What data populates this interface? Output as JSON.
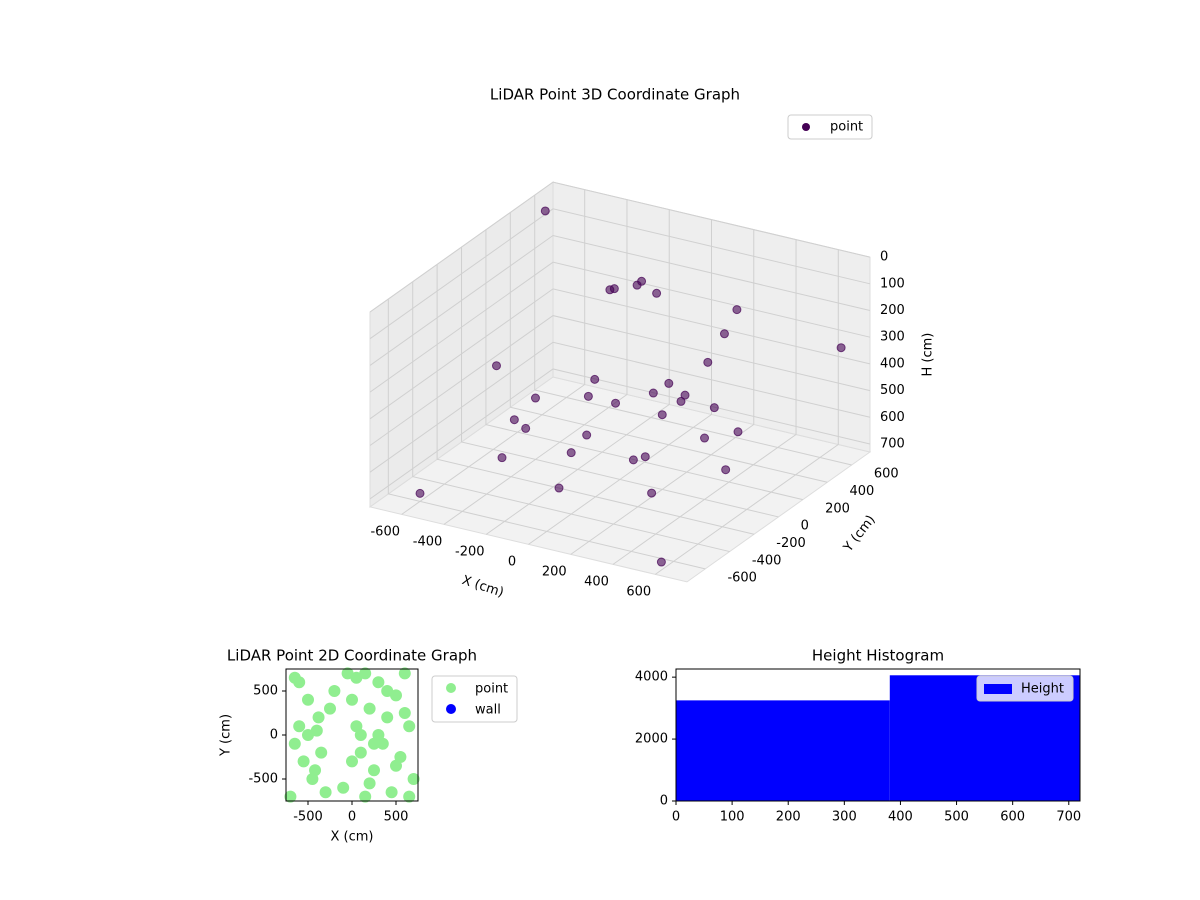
{
  "chart_data": [
    {
      "type": "scatter3d",
      "title": "LiDAR Point 3D Coordinate Graph",
      "xlabel": "X (cm)",
      "ylabel": "Y (cm)",
      "zlabel": "H (cm)",
      "xlim": [
        -750,
        750
      ],
      "ylim": [
        -750,
        750
      ],
      "zlim": [
        730,
        0
      ],
      "xticks": [
        -600,
        -400,
        -200,
        0,
        200,
        400,
        600
      ],
      "yticks": [
        -600,
        -400,
        -200,
        0,
        200,
        400,
        600
      ],
      "zticks": [
        0,
        100,
        200,
        300,
        400,
        500,
        600,
        700
      ],
      "grid": true,
      "legend": "upper right",
      "series": [
        {
          "name": "point",
          "color": "#440154",
          "x": [
            400,
            283,
            0,
            -283,
            -400,
            -283,
            0,
            283,
            500,
            354,
            0,
            -354,
            -500,
            -354,
            0,
            354,
            -200,
            -100,
            0,
            -150,
            -250,
            300,
            350,
            380,
            250,
            200,
            -700,
            -600,
            600,
            700,
            -700,
            100,
            -100,
            150,
            -50
          ],
          "y": [
            0,
            283,
            400,
            283,
            0,
            -283,
            -400,
            -283,
            0,
            354,
            500,
            354,
            0,
            -354,
            -500,
            -354,
            300,
            350,
            300,
            400,
            350,
            200,
            250,
            300,
            100,
            0,
            600,
            -600,
            -700,
            600,
            200,
            100,
            -100,
            -150,
            50
          ],
          "z": [
            500,
            500,
            500,
            500,
            500,
            500,
            500,
            500,
            600,
            600,
            600,
            600,
            600,
            600,
            600,
            600,
            150,
            120,
            130,
            160,
            180,
            300,
            200,
            120,
            400,
            450,
            50,
            700,
            700,
            300,
            500,
            420,
            550,
            580,
            470
          ]
        }
      ]
    },
    {
      "type": "scatter",
      "title": "LiDAR Point 2D Coordinate Graph",
      "xlabel": "X (cm)",
      "ylabel": "Y (cm)",
      "xlim": [
        -750,
        750
      ],
      "ylim": [
        -750,
        750
      ],
      "xticks": [
        -500,
        0,
        500
      ],
      "yticks": [
        -500,
        0,
        500
      ],
      "legend": "outside right",
      "series": [
        {
          "name": "point",
          "color": "#90ee90",
          "x": [
            -700,
            -650,
            -600,
            -550,
            -500,
            -450,
            -400,
            -350,
            -300,
            -250,
            -650,
            -600,
            -500,
            -420,
            -380,
            -200,
            -100,
            -50,
            0,
            50,
            100,
            150,
            200,
            250,
            300,
            350,
            400,
            450,
            500,
            550,
            600,
            650,
            700,
            0,
            100,
            200,
            300,
            400,
            500,
            600,
            650,
            50,
            150,
            250
          ],
          "y": [
            -700,
            650,
            100,
            -300,
            0,
            -500,
            50,
            -200,
            -650,
            300,
            -100,
            600,
            400,
            -400,
            200,
            500,
            -600,
            700,
            -300,
            650,
            0,
            -700,
            300,
            -400,
            600,
            -100,
            200,
            -650,
            450,
            -250,
            700,
            100,
            -500,
            400,
            -200,
            -550,
            0,
            500,
            -350,
            250,
            -700,
            100,
            700,
            -100
          ]
        },
        {
          "name": "wall",
          "color": "#0000ff",
          "x": [],
          "y": []
        }
      ]
    },
    {
      "type": "histogram",
      "title": "Height Histogram",
      "label": "Height",
      "color": "#0000ff",
      "bins": [
        0,
        381,
        720
      ],
      "counts": [
        3250,
        4060
      ],
      "xlim": [
        0,
        720
      ],
      "ylim": [
        0,
        4263
      ],
      "xticks": [
        0,
        100,
        200,
        300,
        400,
        500,
        600,
        700
      ],
      "yticks": [
        0,
        2000,
        4000
      ],
      "legend": "upper right"
    }
  ]
}
